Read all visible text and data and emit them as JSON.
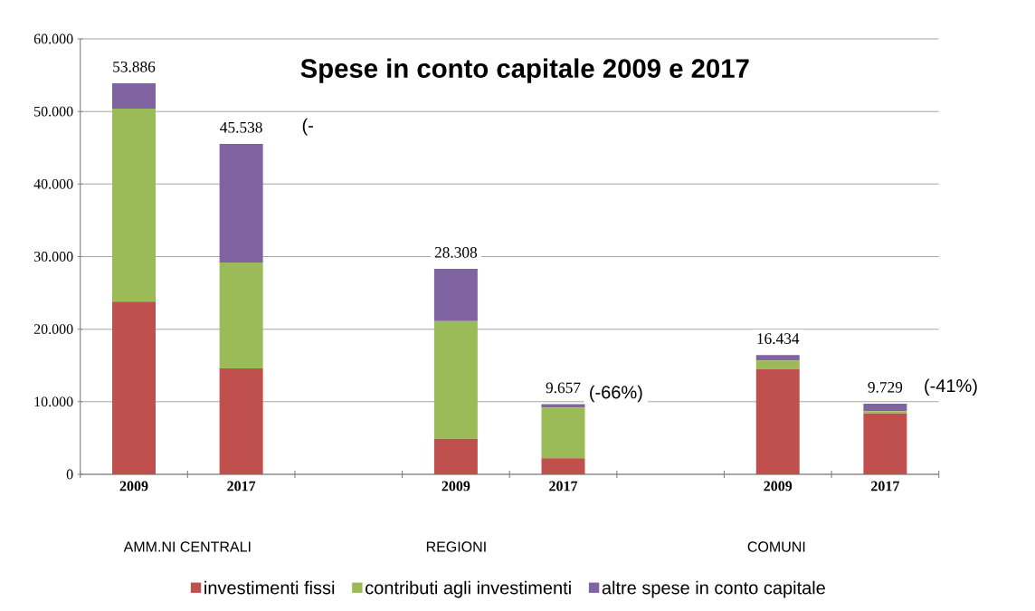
{
  "chart_data": {
    "type": "bar",
    "stacked": true,
    "title": "Spese in conto capitale 2009 e 2017",
    "categories": [
      "2009",
      "2017",
      null,
      "2009",
      "2017",
      null,
      "2009",
      "2017"
    ],
    "series": [
      {
        "name": "investimenti fissi",
        "color": "#c0504d",
        "values": [
          23800,
          14600,
          null,
          4900,
          2200,
          null,
          14500,
          8400
        ]
      },
      {
        "name": "contributi agli investimenti",
        "color": "#9bbb59",
        "values": [
          26600,
          14600,
          null,
          16200,
          7000,
          null,
          1200,
          300
        ]
      },
      {
        "name": "altre spese in conto capitale",
        "color": "#8064a2",
        "values": [
          3486,
          16338,
          null,
          7208,
          457,
          null,
          734,
          1029
        ]
      }
    ],
    "totals": [
      "53.886",
      "45.538",
      null,
      "28.308",
      "9.657",
      null,
      "16.434",
      "9.729"
    ],
    "ylim": [
      0,
      60000
    ],
    "yticks": [
      0,
      {
        "value": 10000,
        "label": "10.000"
      },
      {
        "value": 20000,
        "label": "20.000"
      },
      {
        "value": 30000,
        "label": "30.000"
      },
      {
        "value": 40000,
        "label": "40.000"
      },
      {
        "value": 50000,
        "label": "50.000"
      },
      {
        "value": 60000,
        "label": "60.000"
      }
    ],
    "grid": "y",
    "legend": "bottom",
    "annotations": [
      "AMM.NI CENTRALI",
      "REGIONI",
      "COMUNI",
      "(-",
      "(-66%)",
      "(-41%)"
    ]
  }
}
